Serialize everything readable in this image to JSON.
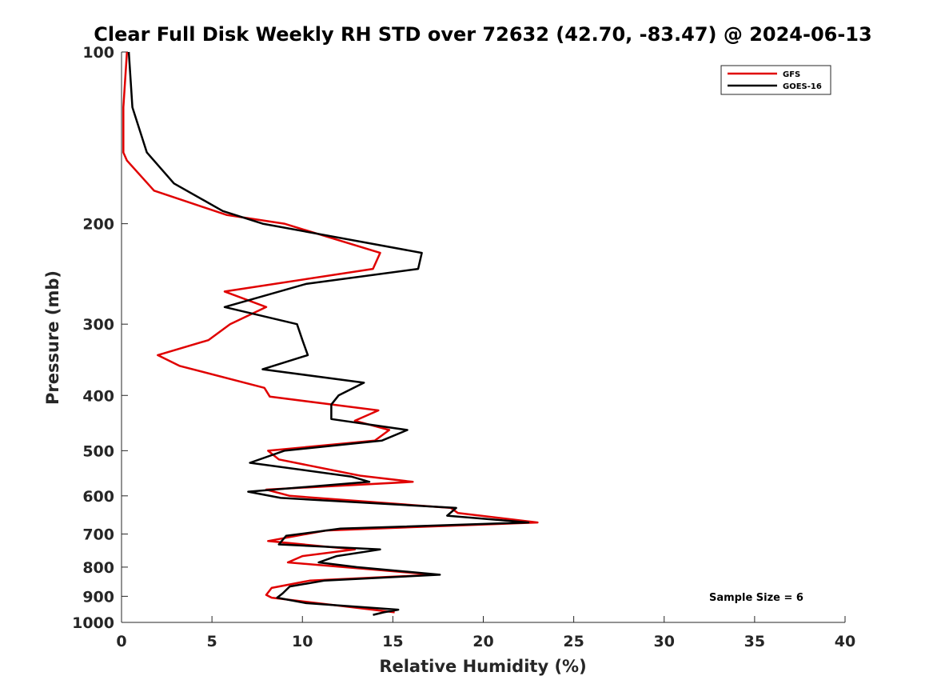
{
  "chart_data": {
    "type": "line",
    "title": "Clear Full Disk Weekly RH STD over 72632 (42.70, -83.47) @ 2024-06-13",
    "xlabel": "Relative Humidity (%)",
    "ylabel": "Pressure (mb)",
    "xlim": [
      0,
      40
    ],
    "ylim": [
      100,
      1000
    ],
    "yscale": "log",
    "y_reversed": true,
    "x_ticks": [
      0,
      5,
      10,
      15,
      20,
      25,
      30,
      35,
      40
    ],
    "y_ticks": [
      100,
      200,
      300,
      400,
      500,
      600,
      700,
      800,
      900,
      1000
    ],
    "grid": false,
    "legend_position": "top-right",
    "annotation": "Sample Size = 6",
    "series": [
      {
        "name": "GFS",
        "color": "#e00000",
        "points": [
          [
            0.3,
            100
          ],
          [
            0.1,
            125
          ],
          [
            0.1,
            150
          ],
          [
            0.3,
            155
          ],
          [
            1.8,
            175
          ],
          [
            5.8,
            193
          ],
          [
            9.0,
            200
          ],
          [
            14.3,
            225
          ],
          [
            13.9,
            240
          ],
          [
            5.7,
            263
          ],
          [
            8.0,
            280
          ],
          [
            6.0,
            300
          ],
          [
            4.8,
            320
          ],
          [
            2.0,
            340
          ],
          [
            3.2,
            355
          ],
          [
            7.9,
            388
          ],
          [
            8.2,
            402
          ],
          [
            14.2,
            425
          ],
          [
            12.9,
            443
          ],
          [
            14.8,
            460
          ],
          [
            14.0,
            480
          ],
          [
            8.1,
            500
          ],
          [
            8.7,
            518
          ],
          [
            13.2,
            553
          ],
          [
            16.1,
            567
          ],
          [
            8.0,
            585
          ],
          [
            9.3,
            600
          ],
          [
            18.2,
            630
          ],
          [
            18.6,
            643
          ],
          [
            23.0,
            668
          ],
          [
            11.3,
            690
          ],
          [
            8.1,
            720
          ],
          [
            12.9,
            745
          ],
          [
            10.0,
            765
          ],
          [
            9.2,
            785
          ],
          [
            17.3,
            825
          ],
          [
            10.4,
            845
          ],
          [
            8.3,
            870
          ],
          [
            8.0,
            895
          ],
          [
            8.3,
            905
          ],
          [
            15.1,
            960
          ]
        ]
      },
      {
        "name": "GOES-16",
        "color": "#000000",
        "points": [
          [
            0.4,
            100
          ],
          [
            0.6,
            125
          ],
          [
            1.4,
            150
          ],
          [
            2.9,
            170
          ],
          [
            5.6,
            190
          ],
          [
            7.8,
            200
          ],
          [
            16.6,
            225
          ],
          [
            16.4,
            240
          ],
          [
            10.2,
            255
          ],
          [
            5.7,
            280
          ],
          [
            9.7,
            300
          ],
          [
            10.0,
            320
          ],
          [
            10.3,
            340
          ],
          [
            7.8,
            360
          ],
          [
            13.4,
            380
          ],
          [
            12.0,
            400
          ],
          [
            11.6,
            415
          ],
          [
            11.6,
            440
          ],
          [
            15.8,
            460
          ],
          [
            14.4,
            480
          ],
          [
            9.0,
            500
          ],
          [
            7.1,
            525
          ],
          [
            12.7,
            555
          ],
          [
            13.7,
            567
          ],
          [
            7.0,
            590
          ],
          [
            8.8,
            605
          ],
          [
            18.5,
            630
          ],
          [
            18.0,
            650
          ],
          [
            22.5,
            668
          ],
          [
            12.1,
            685
          ],
          [
            9.1,
            705
          ],
          [
            8.7,
            730
          ],
          [
            14.3,
            745
          ],
          [
            11.9,
            765
          ],
          [
            10.9,
            785
          ],
          [
            13.0,
            800
          ],
          [
            17.6,
            825
          ],
          [
            11.2,
            845
          ],
          [
            9.3,
            865
          ],
          [
            8.9,
            890
          ],
          [
            8.6,
            905
          ],
          [
            10.2,
            925
          ],
          [
            15.3,
            950
          ],
          [
            14.5,
            960
          ],
          [
            13.9,
            970
          ]
        ]
      }
    ]
  }
}
